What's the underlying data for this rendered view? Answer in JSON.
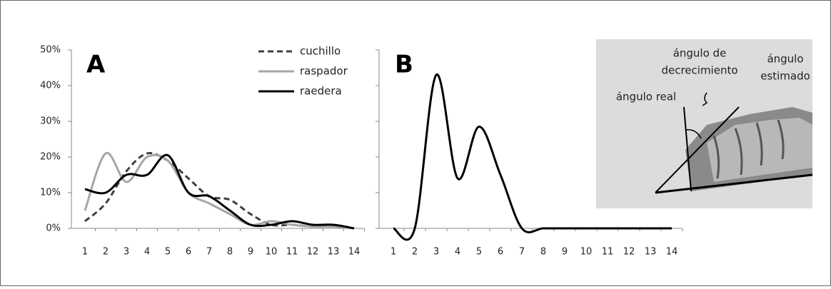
{
  "chart_data": [
    {
      "type": "line",
      "panel_label": "A",
      "categories": [
        "1",
        "2",
        "3",
        "4",
        "5",
        "6",
        "7",
        "8",
        "9",
        "10",
        "11",
        "12",
        "13",
        "14"
      ],
      "series": [
        {
          "name": "cuchillo",
          "color": "#404040",
          "dashed": true,
          "values": [
            2,
            7,
            16,
            21,
            19,
            14,
            9,
            8,
            4,
            1,
            1,
            0.5,
            0.5,
            0
          ]
        },
        {
          "name": "raspador",
          "color": "#a6a6a6",
          "dashed": false,
          "values": [
            5,
            21,
            13,
            20,
            19,
            10,
            7,
            4,
            1,
            2,
            1,
            0.5,
            0.5,
            0
          ]
        },
        {
          "name": "raedera",
          "color": "#000000",
          "dashed": false,
          "values": [
            11,
            10,
            15,
            15,
            20.5,
            10,
            9,
            5,
            1,
            1,
            2,
            1,
            1,
            0
          ]
        }
      ],
      "ylim": [
        0,
        50
      ],
      "yticks": [
        {
          "value": 0,
          "label": "0%"
        },
        {
          "value": 10,
          "label": "10%"
        },
        {
          "value": 20,
          "label": "20%"
        },
        {
          "value": 30,
          "label": "30%"
        },
        {
          "value": 40,
          "label": "40%"
        },
        {
          "value": 50,
          "label": "50%"
        }
      ],
      "ytick_labels": true,
      "legend": "top-right"
    },
    {
      "type": "line",
      "panel_label": "B",
      "categories": [
        "1",
        "2",
        "3",
        "4",
        "5",
        "6",
        "7",
        "8",
        "9",
        "10",
        "11",
        "12",
        "13",
        "14"
      ],
      "series": [
        {
          "color": "#000000",
          "dashed": false,
          "values": [
            0,
            0,
            43,
            14,
            28.5,
            15,
            0,
            0,
            0,
            0,
            0,
            0,
            0,
            0
          ]
        }
      ],
      "ylim": [
        0,
        50
      ],
      "yticks": [
        0,
        10,
        20,
        30,
        40,
        50
      ],
      "ytick_labels": false,
      "annotations": [
        "ángulo de",
        "decrecimiento",
        "ángulo",
        "estimado",
        "ángulo real"
      ]
    }
  ]
}
